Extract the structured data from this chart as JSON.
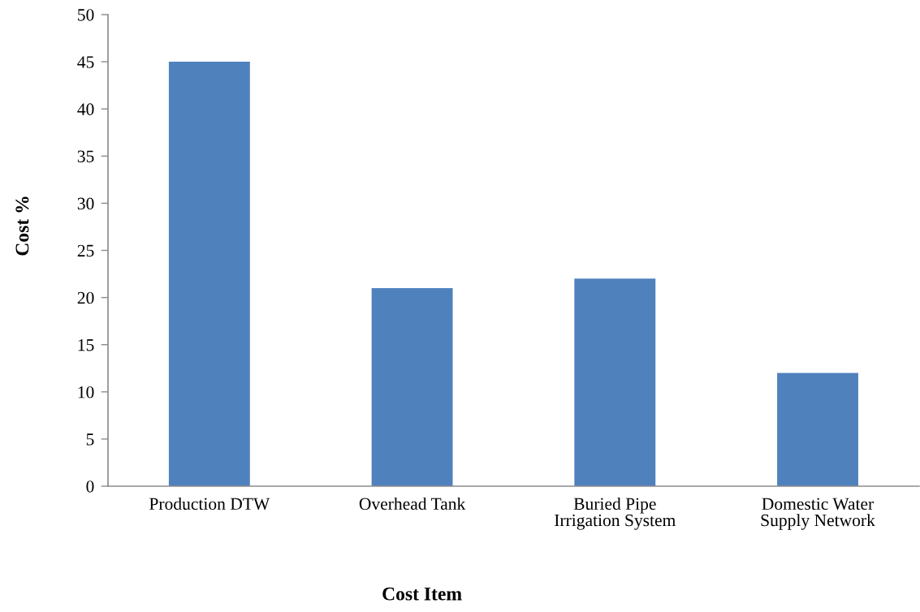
{
  "chart_data": {
    "type": "bar",
    "xlabel": "Cost Item",
    "ylabel": "Cost %",
    "categories": [
      "Production DTW",
      "Overhead Tank",
      "Buried Pipe\nIrrigation System",
      "Domestic Water\nSupply Network"
    ],
    "values": [
      45,
      21,
      22,
      12
    ],
    "color": "#4f81bd",
    "ylim": [
      0,
      50
    ],
    "yticks": [
      0,
      5,
      10,
      15,
      20,
      25,
      30,
      35,
      40,
      45,
      50
    ],
    "grid": false,
    "legend": false
  }
}
